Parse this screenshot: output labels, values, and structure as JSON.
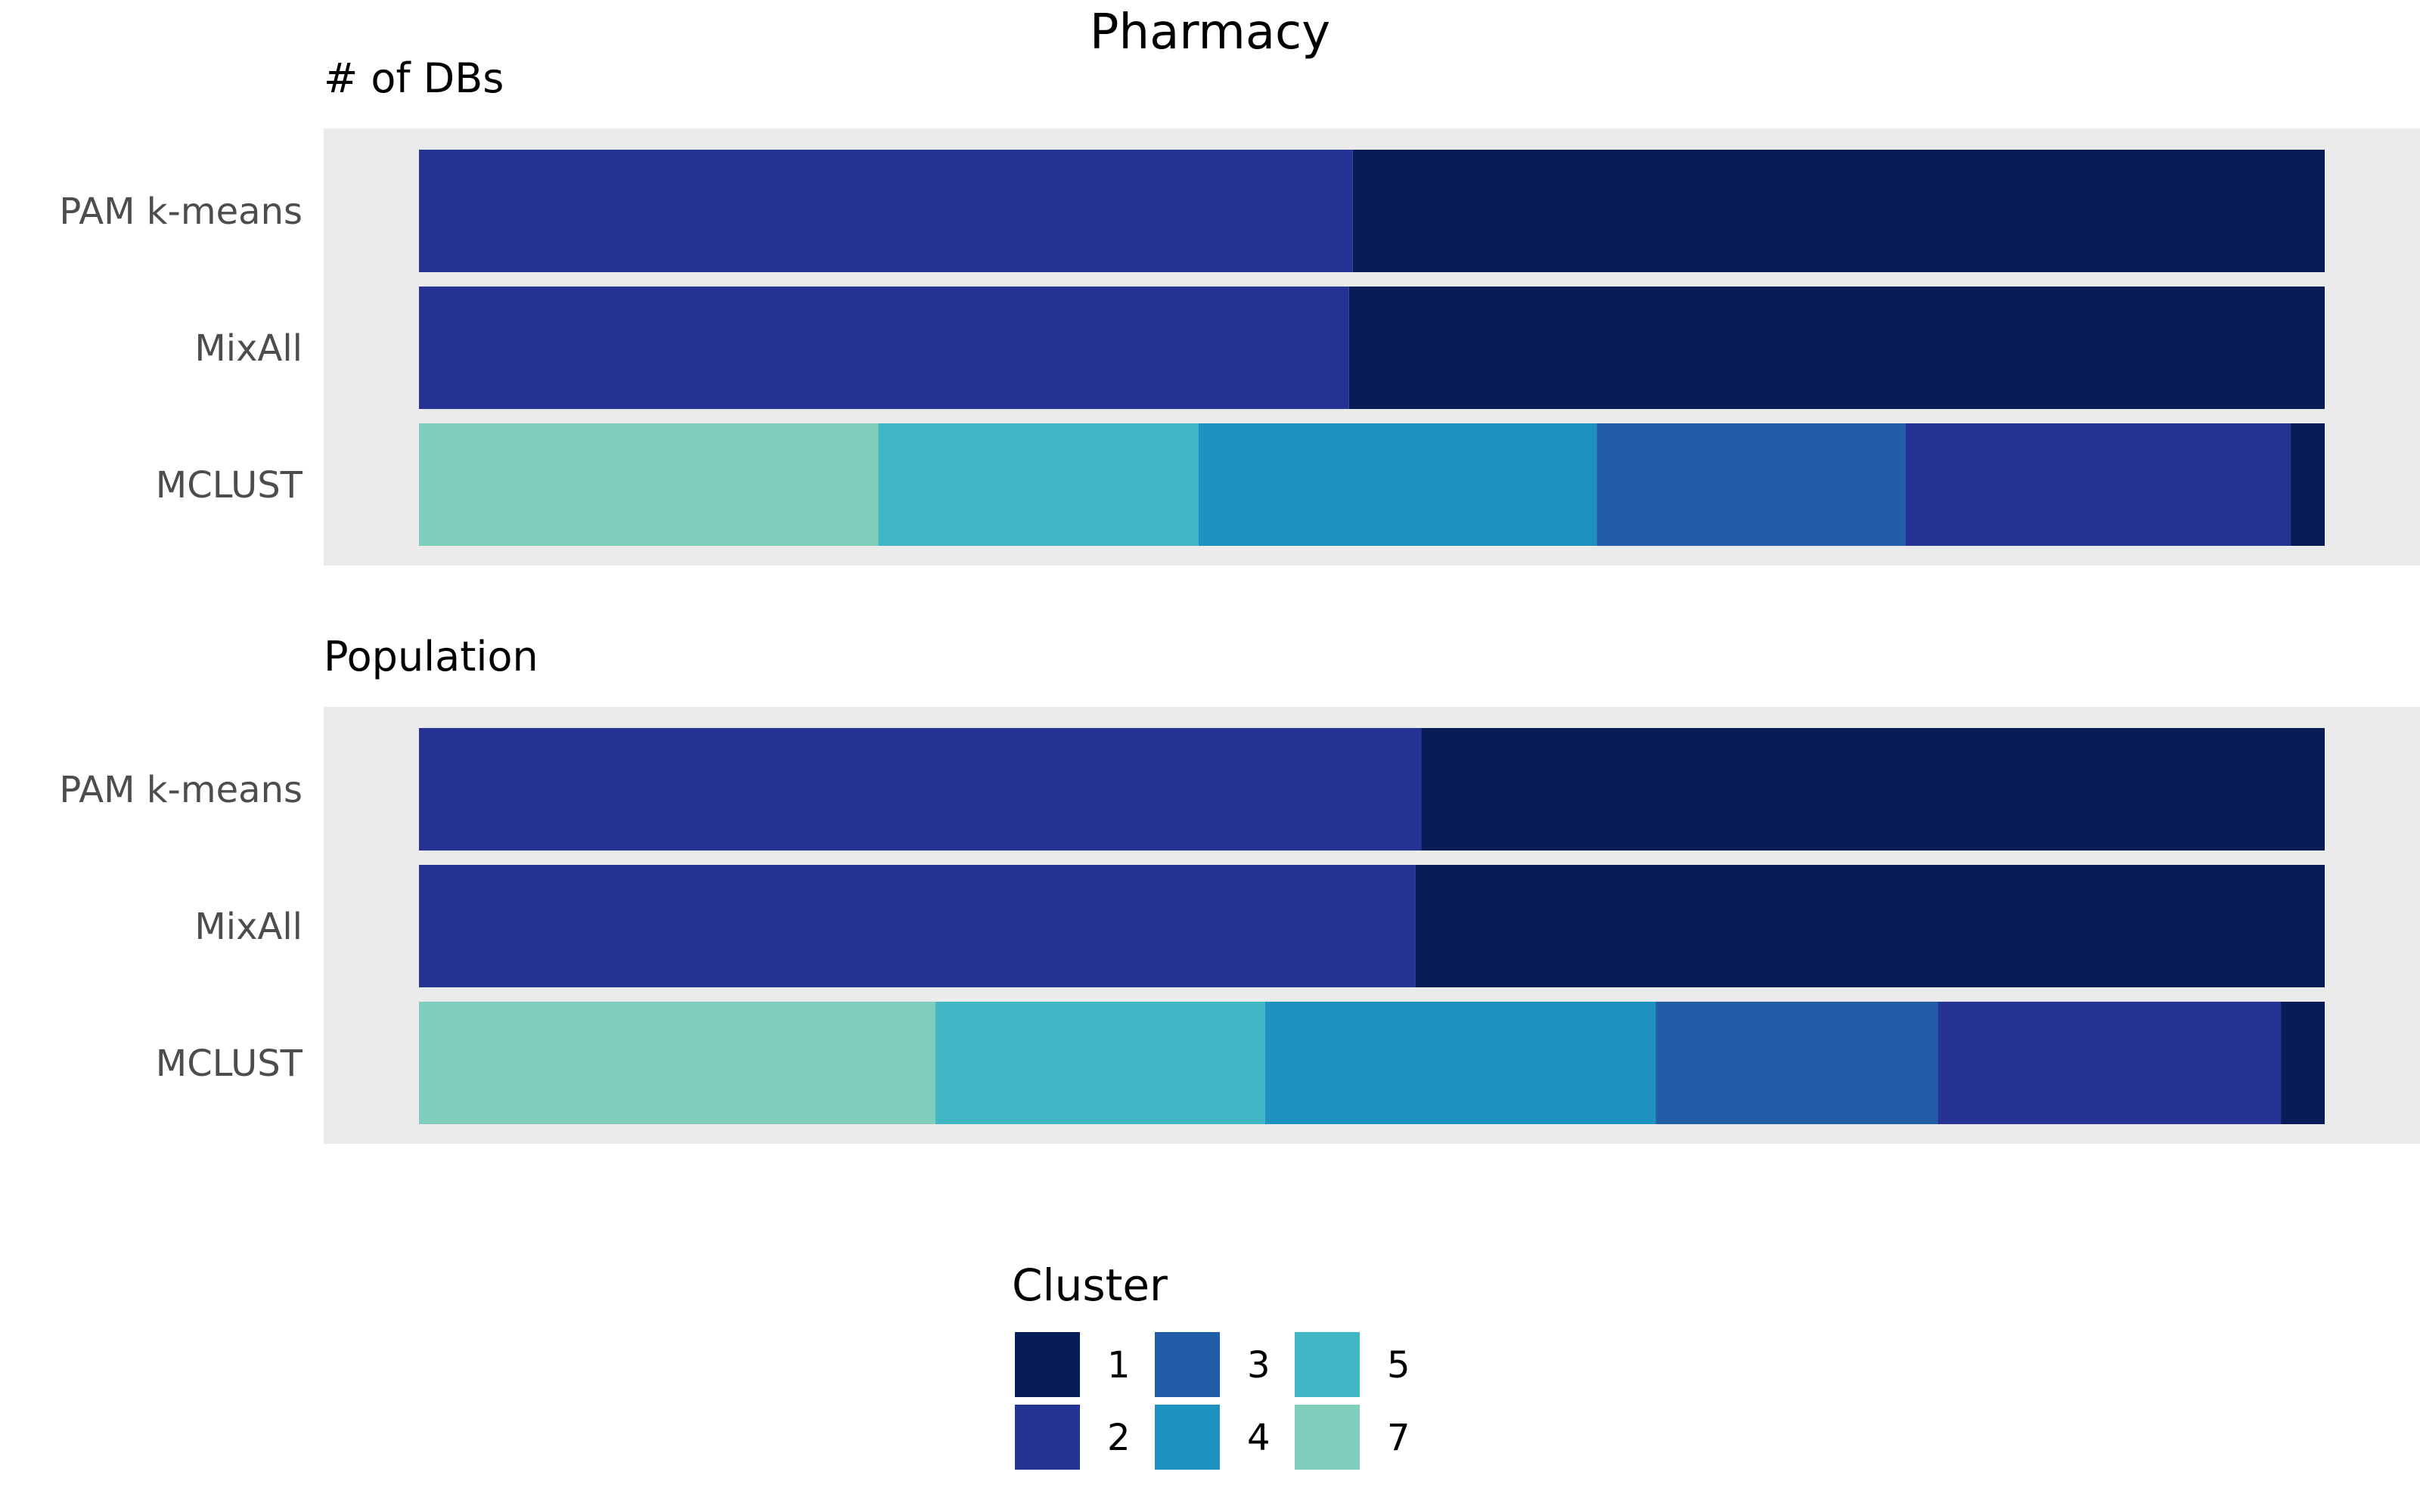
{
  "chart_data": {
    "type": "bar",
    "orientation": "horizontal",
    "stacked": true,
    "normalized": true,
    "title": "Pharmacy",
    "panels": [
      {
        "title": "# of DBs",
        "categories": [
          "PAM k-means",
          "MixAll",
          "MCLUST"
        ],
        "series": [
          {
            "name": "1",
            "values": [
              0.51,
              0.512,
              0.018
            ]
          },
          {
            "name": "2",
            "values": [
              0.49,
              0.488,
              0.202
            ]
          },
          {
            "name": "3",
            "values": [
              0,
              0,
              0.162
            ]
          },
          {
            "name": "4",
            "values": [
              0,
              0,
              0.209
            ]
          },
          {
            "name": "5",
            "values": [
              0,
              0,
              0.168
            ]
          },
          {
            "name": "7",
            "values": [
              0,
              0,
              0.241
            ]
          }
        ]
      },
      {
        "title": "Population",
        "categories": [
          "PAM k-means",
          "MixAll",
          "MCLUST"
        ],
        "series": [
          {
            "name": "1",
            "values": [
              0.474,
              0.477,
              0.023
            ]
          },
          {
            "name": "2",
            "values": [
              0.526,
              0.523,
              0.18
            ]
          },
          {
            "name": "3",
            "values": [
              0,
              0,
              0.148
            ]
          },
          {
            "name": "4",
            "values": [
              0,
              0,
              0.205
            ]
          },
          {
            "name": "5",
            "values": [
              0,
              0,
              0.173
            ]
          },
          {
            "name": "7",
            "values": [
              0,
              0,
              0.271
            ]
          }
        ]
      }
    ],
    "stack_order": [
      "7",
      "5",
      "4",
      "3",
      "2",
      "1"
    ],
    "legend": {
      "title": "Cluster",
      "position": "bottom",
      "items": [
        {
          "label": "1",
          "color": "#081d58"
        },
        {
          "label": "2",
          "color": "#253494"
        },
        {
          "label": "3",
          "color": "#225ea8"
        },
        {
          "label": "4",
          "color": "#1d91c0"
        },
        {
          "label": "5",
          "color": "#41b6c4"
        },
        {
          "label": "7",
          "color": "#7fcdbb"
        }
      ]
    },
    "xlim": [
      0,
      1
    ],
    "grid": false
  }
}
